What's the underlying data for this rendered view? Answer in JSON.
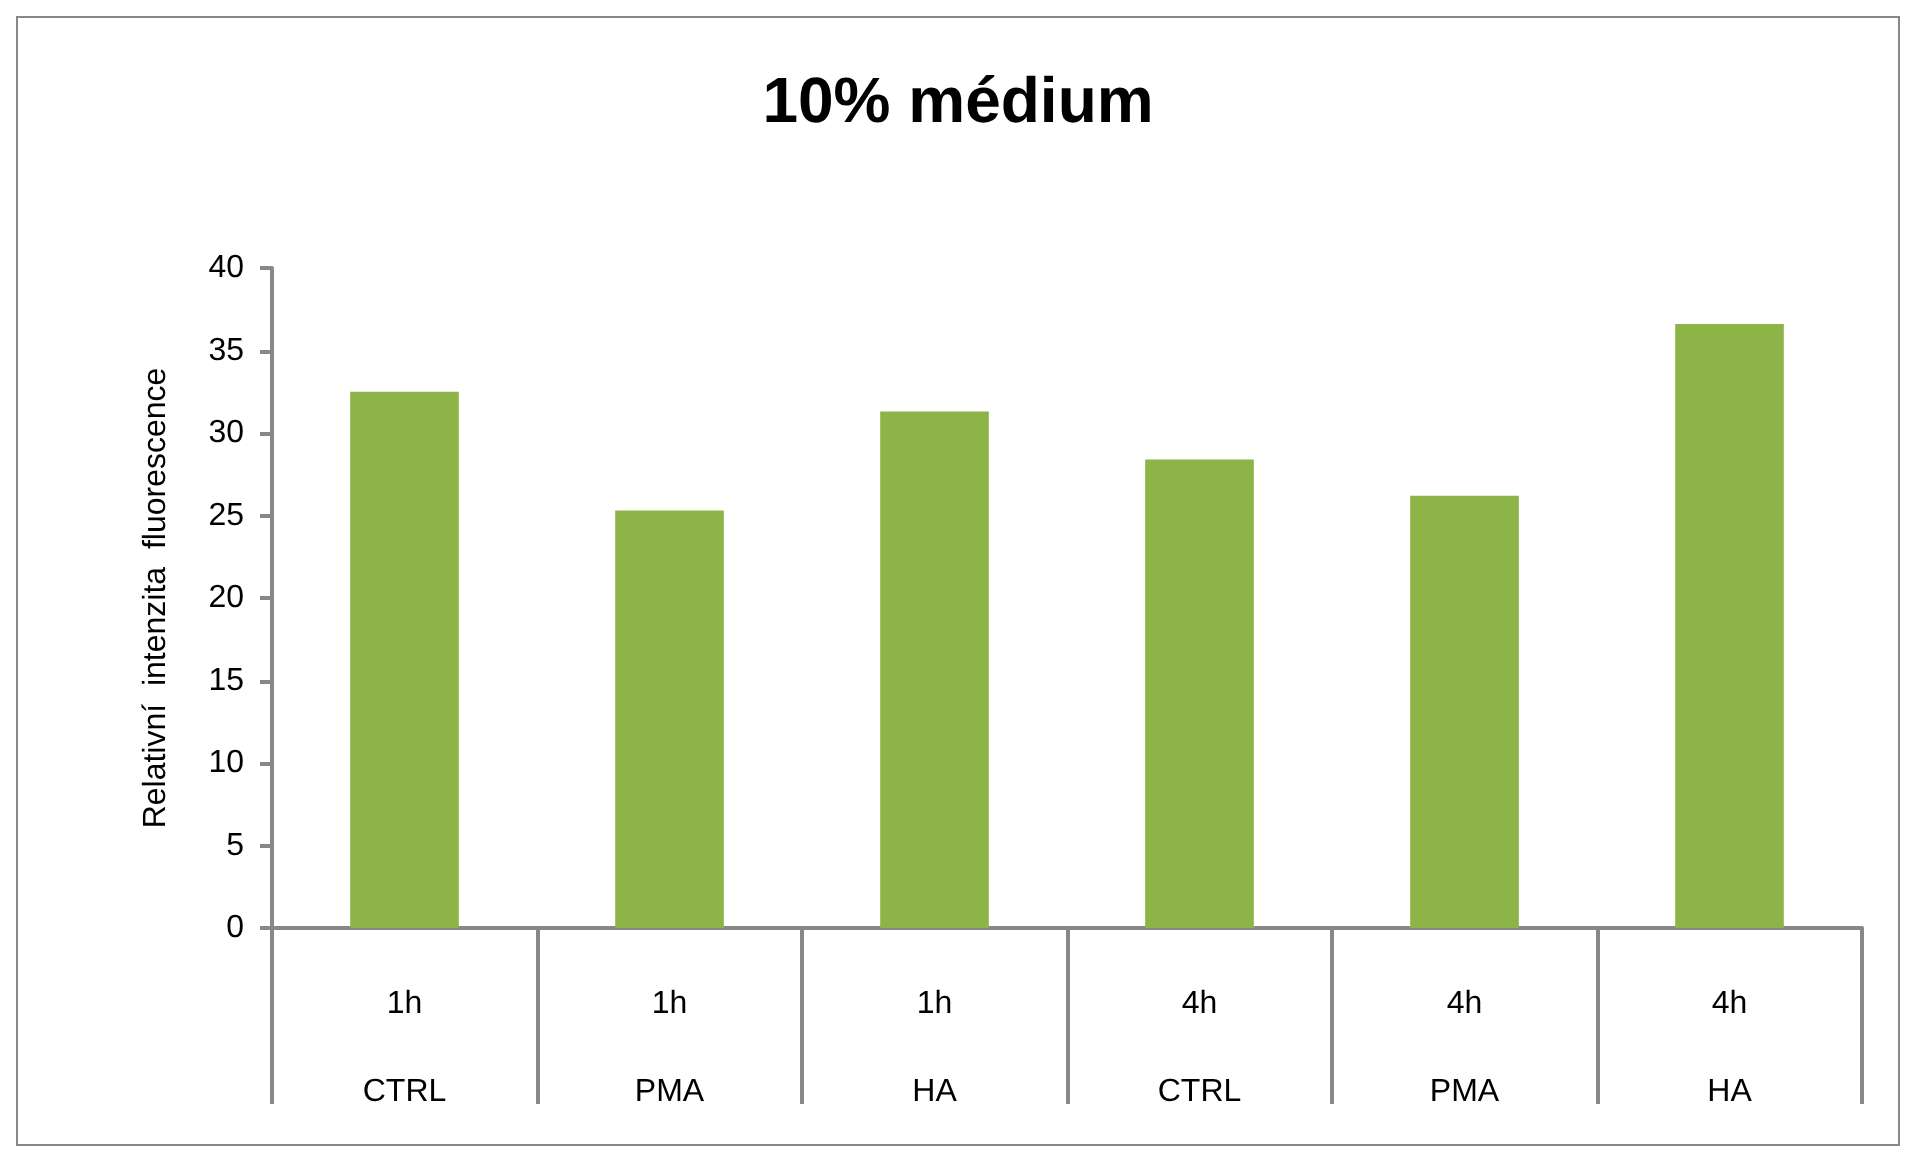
{
  "chart_data": {
    "type": "bar",
    "title": "10% médium",
    "ylabel": "Relativní  intenzita  fluorescence",
    "categories": [
      "1h\nCTRL",
      "1h\nPMA",
      "1h\nHA",
      "4h\nCTRL",
      "4h\nPMA",
      "4h\nHA"
    ],
    "values": [
      32.5,
      25.3,
      31.3,
      28.4,
      26.2,
      36.6
    ],
    "color": "#8db446",
    "ylim": [
      0,
      40
    ],
    "yticks": [
      0,
      5,
      10,
      15,
      20,
      25,
      30,
      35,
      40
    ]
  }
}
